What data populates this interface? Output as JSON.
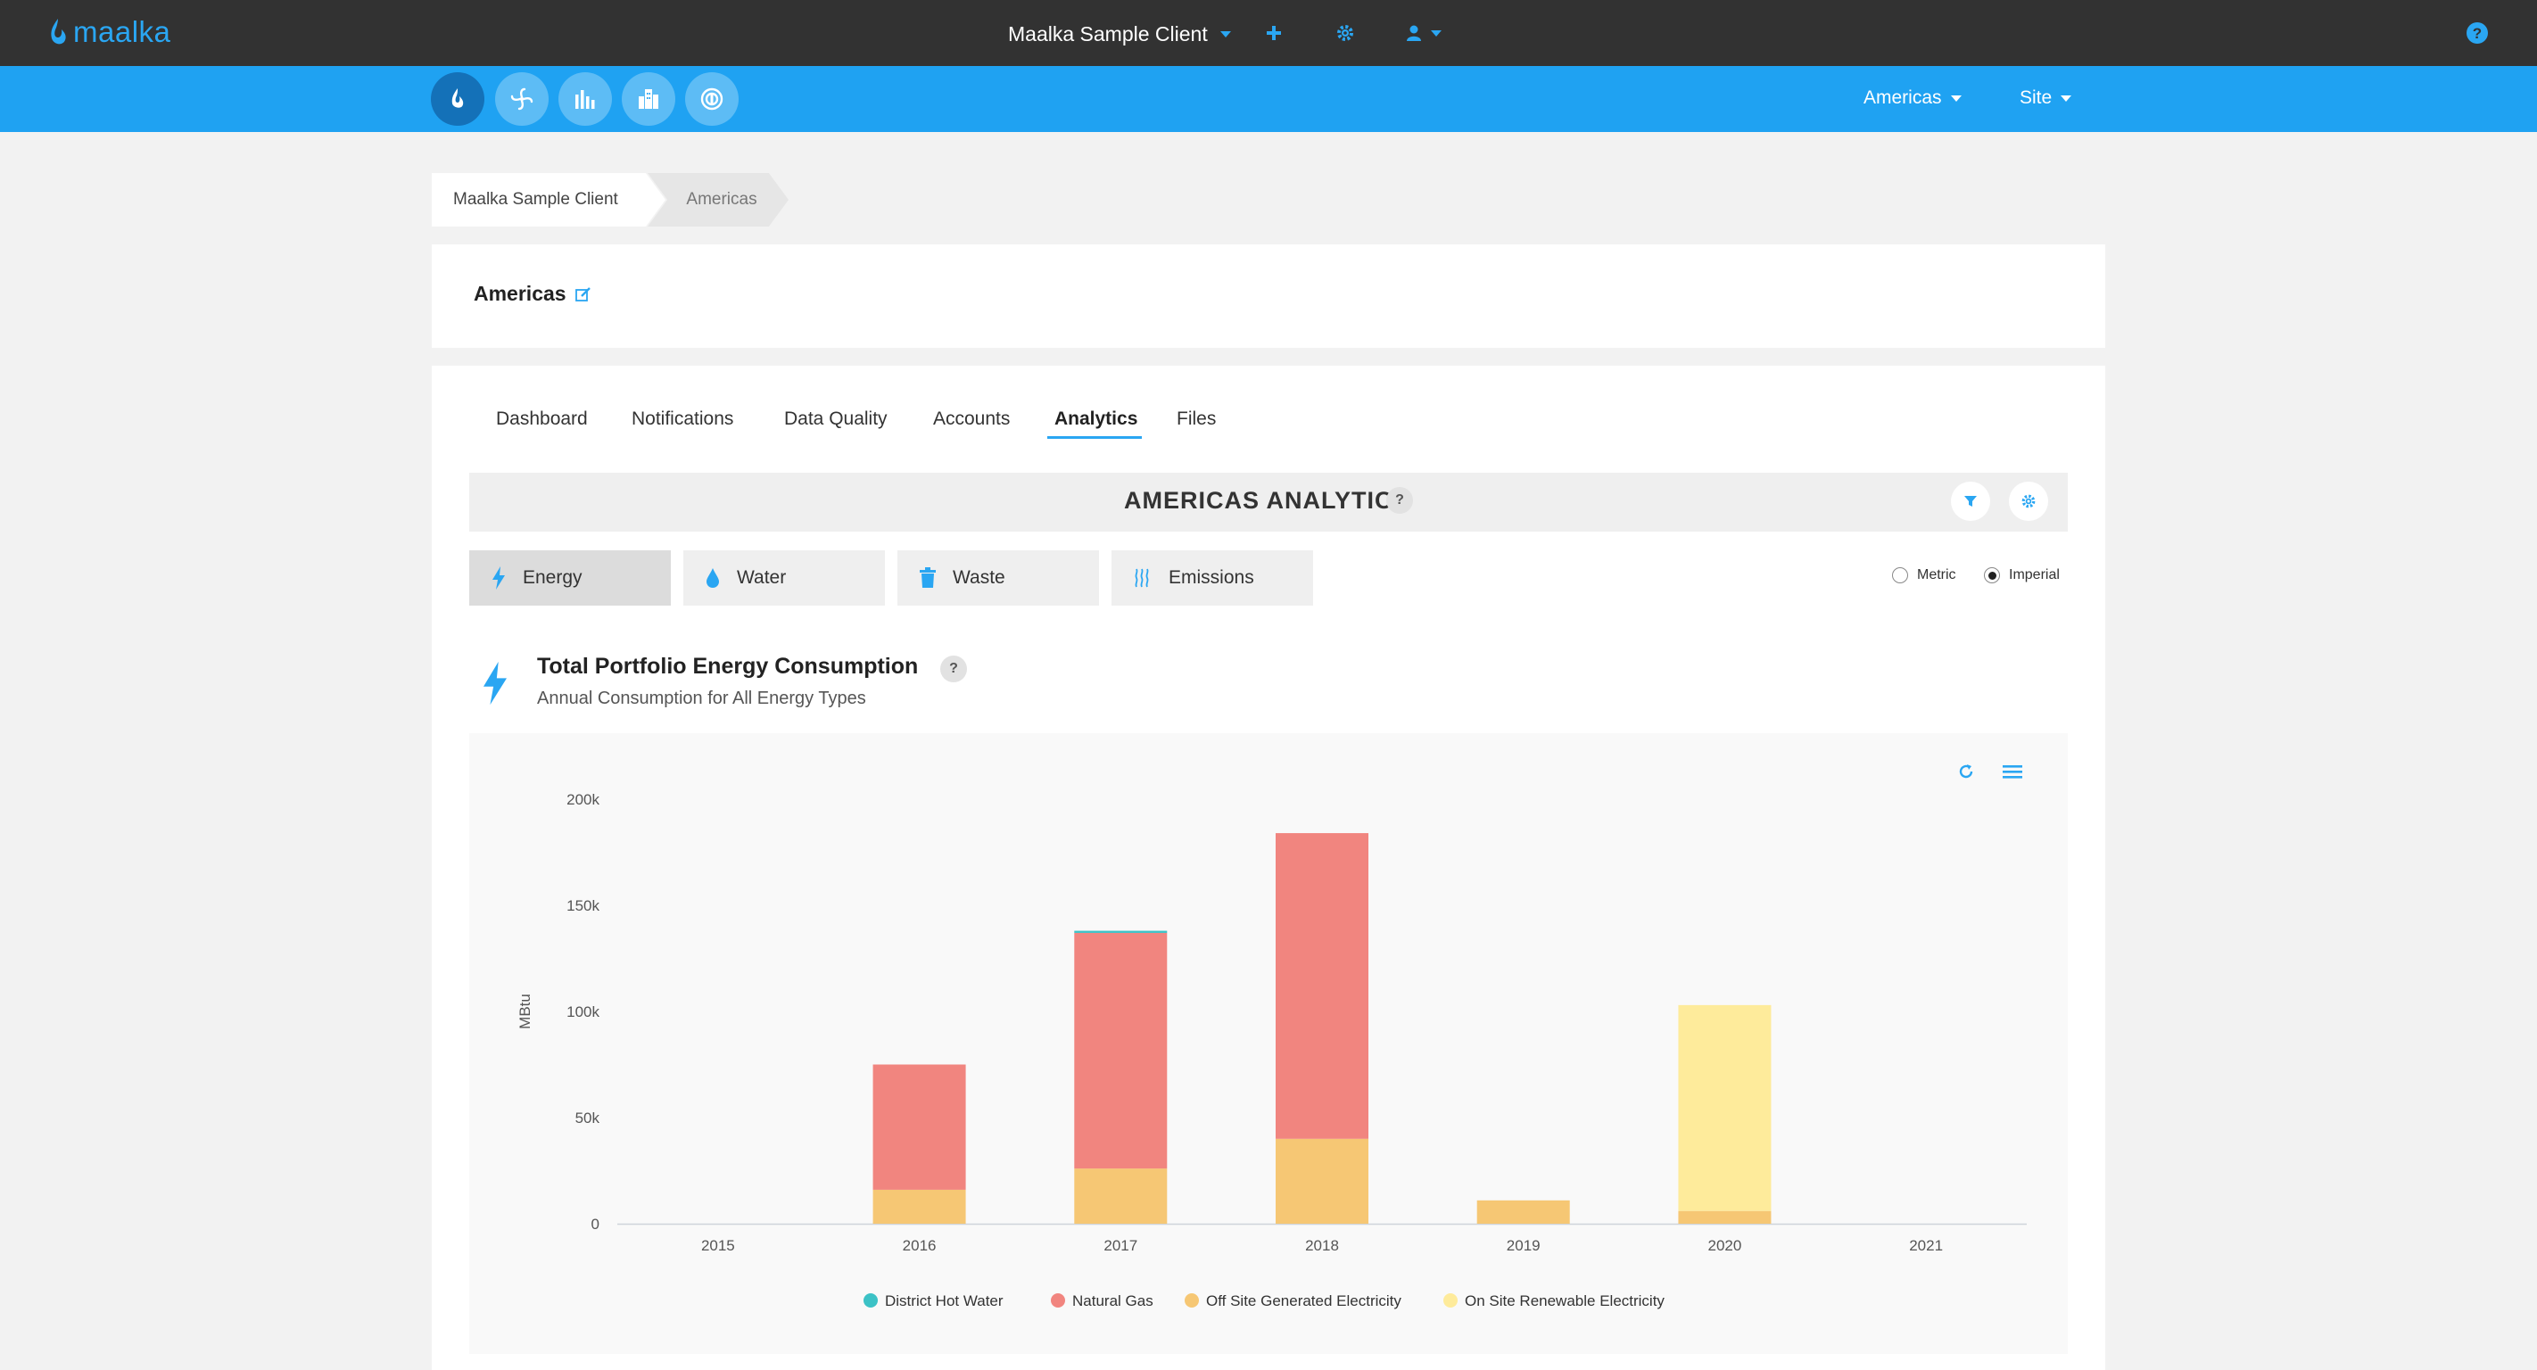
{
  "topbar": {
    "logo_text": "maalka",
    "client_name": "Maalka Sample Client",
    "icons": [
      "plus-icon",
      "gear-icon",
      "user-icon",
      "help-icon"
    ]
  },
  "bluebar": {
    "nav_icons": [
      "flame-icon",
      "fan-icon",
      "bar-chart-icon",
      "buildings-icon",
      "badge-icon"
    ],
    "region_menu": "Americas",
    "site_menu": "Site"
  },
  "breadcrumb": {
    "items": [
      "Maalka Sample Client",
      "Americas"
    ]
  },
  "page": {
    "title": "Americas"
  },
  "tabs": [
    "Dashboard",
    "Notifications",
    "Data Quality",
    "Accounts",
    "Analytics",
    "Files"
  ],
  "active_tab": "Analytics",
  "analytics": {
    "title": "AMERICAS ANALYTICS",
    "help": "?",
    "resource_tabs": [
      "Energy",
      "Water",
      "Waste",
      "Emissions"
    ],
    "active_resource": "Energy",
    "units": {
      "metric_label": "Metric",
      "imperial_label": "Imperial",
      "selected": "Imperial"
    }
  },
  "chart": {
    "title": "Total Portfolio Energy Consumption",
    "subtitle": "Annual Consumption for All Energy Types",
    "help": "?"
  },
  "colors": {
    "accent": "#1fa2f2",
    "district_hot_water": "#3cc2c6",
    "natural_gas": "#f1857f",
    "off_site_electricity": "#f6c774",
    "on_site_renewable": "#feeb9b"
  },
  "chart_data": {
    "type": "bar",
    "stacked": true,
    "title": "",
    "xlabel": "",
    "ylabel": "MBtu",
    "categories": [
      "2015",
      "2016",
      "2017",
      "2018",
      "2019",
      "2020",
      "2021"
    ],
    "ylim": [
      0,
      200000
    ],
    "yticks": [
      0,
      50000,
      100000,
      150000,
      200000
    ],
    "ytick_labels": [
      "0",
      "50k",
      "100k",
      "150k",
      "200k"
    ],
    "legend_position": "bottom",
    "series": [
      {
        "name": "Off Site Generated Electricity",
        "color": "#f6c774",
        "values": [
          0,
          16000,
          26000,
          40000,
          11000,
          6000,
          0
        ]
      },
      {
        "name": "On Site Renewable Electricity",
        "color": "#feeb9b",
        "values": [
          0,
          0,
          0,
          0,
          0,
          97000,
          0
        ]
      },
      {
        "name": "Natural Gas",
        "color": "#f1857f",
        "values": [
          0,
          59000,
          111000,
          144000,
          0,
          0,
          0
        ]
      },
      {
        "name": "District Hot Water",
        "color": "#3cc2c6",
        "values": [
          0,
          0,
          1000,
          0,
          0,
          0,
          0
        ]
      }
    ],
    "legend_order": [
      "District Hot Water",
      "Natural Gas",
      "Off Site Generated Electricity",
      "On Site Renewable Electricity"
    ]
  }
}
